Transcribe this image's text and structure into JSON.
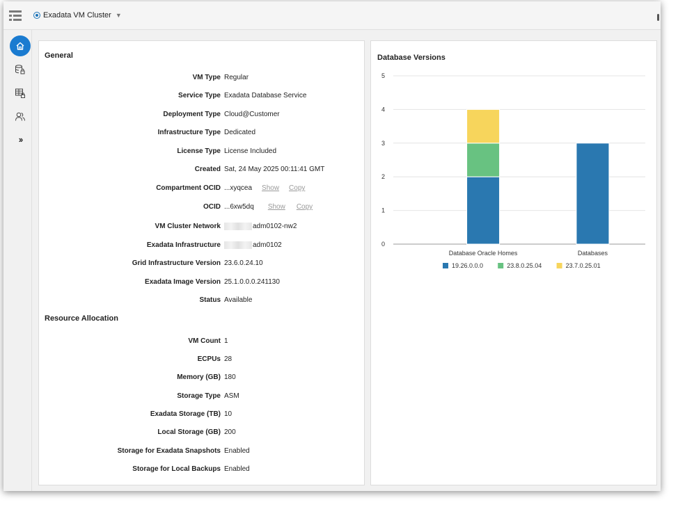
{
  "context": {
    "label": "Exadata VM Cluster"
  },
  "general": {
    "title": "General",
    "fields": [
      {
        "label": "VM Type",
        "value": "Regular"
      },
      {
        "label": "Service Type",
        "value": "Exadata Database Service"
      },
      {
        "label": "Deployment Type",
        "value": "Cloud@Customer"
      },
      {
        "label": "Infrastructure Type",
        "value": "Dedicated"
      },
      {
        "label": "License Type",
        "value": "License Included"
      },
      {
        "label": "Created",
        "value": "Sat, 24 May 2025 00:11:41 GMT"
      },
      {
        "label": "Compartment OCID",
        "value": "...xyqcea",
        "show": "Show",
        "copy": "Copy"
      },
      {
        "label": "OCID",
        "value": "...6xw5dq",
        "show": "Show",
        "copy": "Copy"
      },
      {
        "label": "VM Cluster Network",
        "value": "adm0102-nw2"
      },
      {
        "label": "Exadata Infrastructure",
        "value": "adm0102"
      },
      {
        "label": "Grid Infrastructure Version",
        "value": "23.6.0.24.10"
      },
      {
        "label": "Exadata Image Version",
        "value": "25.1.0.0.0.241130"
      },
      {
        "label": "Status",
        "value": "Available"
      }
    ]
  },
  "resource": {
    "title": "Resource Allocation",
    "fields": [
      {
        "label": "VM Count",
        "value": "1"
      },
      {
        "label": "ECPUs",
        "value": "28"
      },
      {
        "label": "Memory (GB)",
        "value": "180"
      },
      {
        "label": "Storage Type",
        "value": "ASM"
      },
      {
        "label": "Exadata Storage (TB)",
        "value": "10"
      },
      {
        "label": "Local Storage (GB)",
        "value": "200"
      },
      {
        "label": "Storage for Exadata Snapshots",
        "value": "Enabled"
      },
      {
        "label": "Storage for Local Backups",
        "value": "Enabled"
      }
    ]
  },
  "chart_data": {
    "type": "bar",
    "stacked": true,
    "title": "Database Versions",
    "categories": [
      "Database Oracle Homes",
      "Databases"
    ],
    "series": [
      {
        "name": "19.26.0.0.0",
        "values": [
          2,
          3
        ],
        "color": "#2a78b0"
      },
      {
        "name": "23.8.0.25.04",
        "values": [
          1,
          0
        ],
        "color": "#68c281"
      },
      {
        "name": "23.7.0.25.01",
        "values": [
          1,
          0
        ],
        "color": "#f7d55c"
      }
    ],
    "ylim": [
      0,
      5
    ],
    "yticks": [
      "0",
      "1",
      "2",
      "3",
      "4",
      "5"
    ],
    "xlabel": "",
    "ylabel": "",
    "grid": true,
    "legend": "bottom"
  },
  "colors": {
    "accent": "#1a7bd0"
  }
}
